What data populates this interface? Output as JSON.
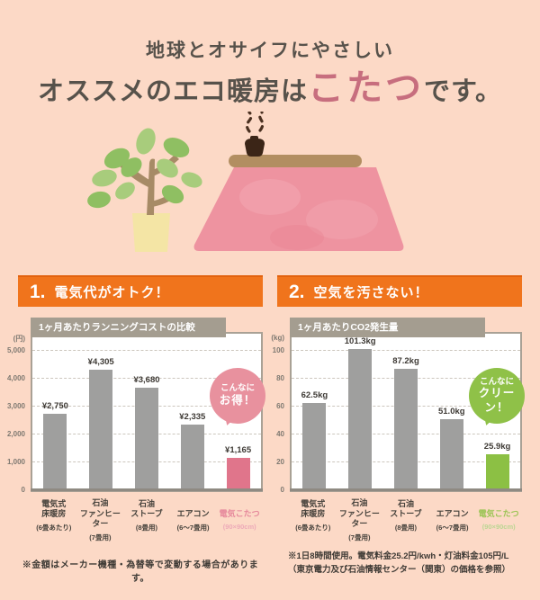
{
  "header": {
    "line1": "地球とオサイフにやさしい",
    "line2_prefix": "オススメのエコ暖房は",
    "line2_accent": "こたつ",
    "line2_suffix": "です。"
  },
  "sections": [
    {
      "number": "1.",
      "title": "電気代がオトク！"
    },
    {
      "number": "2.",
      "title": "空気を汚さない！"
    }
  ],
  "chart_data": [
    {
      "type": "bar",
      "title": "1ヶ月あたりランニングコストの比較",
      "unit": "(円)",
      "ylim": [
        0,
        5600
      ],
      "yticks": [
        {
          "label": "5,000",
          "value": 5000
        },
        {
          "label": "4,000",
          "value": 4000
        },
        {
          "label": "3,000",
          "value": 3000
        },
        {
          "label": "2,000",
          "value": 2000
        },
        {
          "label": "1,000",
          "value": 1000
        },
        {
          "label": "0",
          "value": 0
        }
      ],
      "categories": [
        "電気式\n床暖房",
        "石油\nファンヒーター",
        "石油\nストーブ",
        "エアコン",
        "電気こたつ"
      ],
      "category_subs": [
        "(6畳あたり)",
        "(7畳用)",
        "(8畳用)",
        "(6～7畳用)",
        "(90×90cm)"
      ],
      "values": [
        2750,
        4305,
        3680,
        2335,
        1165
      ],
      "value_labels": [
        "¥2,750",
        "¥4,305",
        "¥3,680",
        "¥2,335",
        "¥1,165"
      ],
      "bar_color": "#9f9f9e",
      "highlight_index": 4,
      "highlight_color": "#e0758b",
      "highlight_label_color": "#e6899c",
      "highlight_sublabel_color": "#edaab8",
      "badge": {
        "line1": "こんなに",
        "line2": "お得！",
        "color": "#e8919e"
      }
    },
    {
      "type": "bar",
      "title": "1ヶ月あたりCO2発生量",
      "unit": "(kg)",
      "ylim": [
        0,
        112
      ],
      "yticks": [
        {
          "label": "100",
          "value": 100
        },
        {
          "label": "80",
          "value": 80
        },
        {
          "label": "60",
          "value": 60
        },
        {
          "label": "40",
          "value": 40
        },
        {
          "label": "20",
          "value": 20
        },
        {
          "label": "0",
          "value": 0
        }
      ],
      "categories": [
        "電気式\n床暖房",
        "石油\nファンヒーター",
        "石油\nストーブ",
        "エアコン",
        "電気こたつ"
      ],
      "category_subs": [
        "(6畳あたり)",
        "(7畳用)",
        "(8畳用)",
        "(6～7畳用)",
        "(90×90cm)"
      ],
      "values": [
        62.5,
        101.3,
        87.2,
        51.0,
        25.9
      ],
      "value_labels": [
        "62.5kg",
        "101.3kg",
        "87.2kg",
        "51.0kg",
        "25.9kg"
      ],
      "bar_color": "#9f9f9e",
      "highlight_index": 4,
      "highlight_color": "#8cc044",
      "highlight_label_color": "#9cc455",
      "highlight_sublabel_color": "#bcd693",
      "badge": {
        "line1": "こんなに",
        "line2": "クリーン！",
        "color": "#8fc148"
      }
    }
  ],
  "footnotes": {
    "left": "※金額はメーカー機種・為替等で変動する場合があります。",
    "right_line1": "※1日8時間使用。電気料金25.2円/kwh・灯油料金105円/L",
    "right_line2": "（東京電力及び石油情報センター（関東）の価格を参照）"
  },
  "colors": {
    "background": "#fcd9c6",
    "accent_orange": "#f0741c",
    "accent_pink": "#e0758b",
    "accent_green": "#8cc044",
    "titlebar_gray": "#a49d90",
    "bar_gray": "#9f9f9e"
  },
  "illustration": {
    "plant_icon": "potted-plant-icon",
    "kotatsu_icon": "kotatsu-with-teapot-icon"
  }
}
